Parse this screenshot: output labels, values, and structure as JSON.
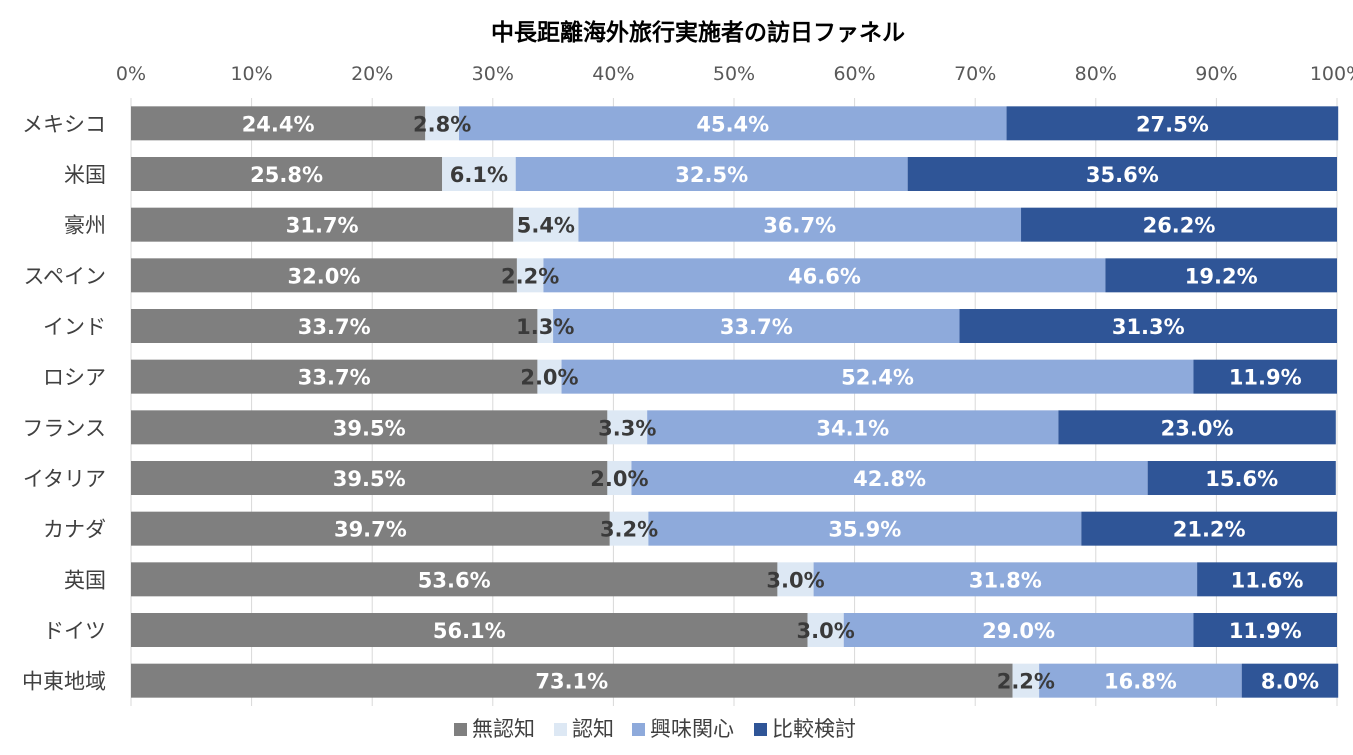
{
  "chart_data": {
    "type": "bar",
    "orientation": "horizontal",
    "stacked": true,
    "percent_stacked": true,
    "title": "中長距離海外旅行実施者の訪日ファネル",
    "categories": [
      "メキシコ",
      "米国",
      "豪州",
      "スペイン",
      "インド",
      "ロシア",
      "フランス",
      "イタリア",
      "カナダ",
      "英国",
      "ドイツ",
      "中東地域"
    ],
    "series": [
      {
        "name": "無認知",
        "color": "#7f7f7f",
        "label_color": "#ffffff",
        "values": [
          24.4,
          25.8,
          31.7,
          32.0,
          33.7,
          33.7,
          39.5,
          39.5,
          39.7,
          53.6,
          56.1,
          73.1
        ],
        "labels": [
          "24.4%",
          "25.8%",
          "31.7%",
          "32.0%",
          "33.7%",
          "33.7%",
          "39.5%",
          "39.5%",
          "39.7%",
          "53.6%",
          "56.1%",
          "73.1%"
        ]
      },
      {
        "name": "認知",
        "color": "#dde8f4",
        "label_color": "#3a3a3a",
        "values": [
          2.8,
          6.1,
          5.4,
          2.2,
          1.3,
          2.0,
          3.3,
          2.0,
          3.2,
          3.0,
          3.0,
          2.2
        ],
        "labels": [
          "2.8%",
          "6.1%",
          "5.4%",
          "2.2%",
          "1.3%",
          "2.0%",
          "3.3%",
          "2.0%",
          "3.2%",
          "3.0%",
          "3.0%",
          "2.2%"
        ]
      },
      {
        "name": "興味関心",
        "color": "#8eaadb",
        "label_color": "#ffffff",
        "values": [
          45.4,
          32.5,
          36.7,
          46.6,
          33.7,
          52.4,
          34.1,
          42.8,
          35.9,
          31.8,
          29.0,
          16.8
        ],
        "labels": [
          "45.4%",
          "32.5%",
          "36.7%",
          "46.6%",
          "33.7%",
          "52.4%",
          "34.1%",
          "42.8%",
          "35.9%",
          "31.8%",
          "29.0%",
          "16.8%"
        ]
      },
      {
        "name": "比較検討",
        "color": "#2f5597",
        "label_color": "#ffffff",
        "values": [
          27.5,
          35.6,
          26.2,
          19.2,
          31.3,
          11.9,
          23.0,
          15.6,
          21.2,
          11.6,
          11.9,
          8.0
        ],
        "labels": [
          "27.5%",
          "35.6%",
          "26.2%",
          "19.2%",
          "31.3%",
          "11.9%",
          "23.0%",
          "15.6%",
          "21.2%",
          "11.6%",
          "11.9%",
          "8.0%"
        ]
      }
    ],
    "xlim": [
      0,
      100
    ],
    "x_ticks": [
      "0%",
      "10%",
      "20%",
      "30%",
      "40%",
      "50%",
      "60%",
      "70%",
      "80%",
      "90%",
      "100%"
    ],
    "x_axis_position": "top",
    "grid": true,
    "legend_position": "bottom"
  }
}
